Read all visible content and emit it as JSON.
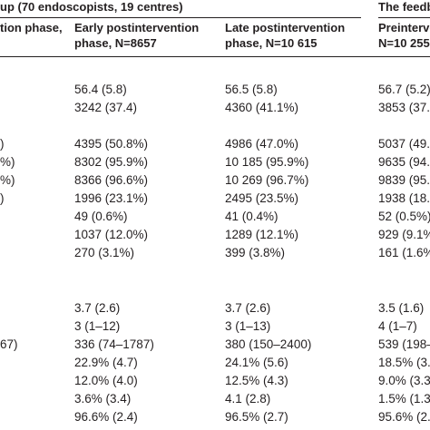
{
  "header": {
    "group1_title": "up (70 endoscopists, 19 centres)",
    "group2_title": "The feedb",
    "col0": [
      "tion phase,",
      ""
    ],
    "col1": [
      "Early postintervention",
      "phase, N=8657"
    ],
    "col2": [
      "Late postintervention",
      "phase, N=10 615"
    ],
    "col3": [
      "Preinterve",
      "N=10 255"
    ]
  },
  "rows": [
    {
      "c0": "",
      "c1": "56.4 (5.8)",
      "c2": "56.5 (5.8)",
      "c3": "56.7 (5.2)"
    },
    {
      "c0": "",
      "c1": "3242 (37.4)",
      "c2": "4360 (41.1%)",
      "c3": "3853 (37."
    },
    {
      "c0": ")",
      "c1": "4395 (50.8%)",
      "c2": "4986 (47.0%)",
      "c3": "5037 (49.1"
    },
    {
      "c0": "%)",
      "c1": "8302 (95.9%)",
      "c2": "10 185 (95.9%)",
      "c3": "9635 (94.0"
    },
    {
      "c0": "%)",
      "c1": "8366 (96.6%)",
      "c2": "10 269 (96.7%)",
      "c3": "9839 (95.9"
    },
    {
      "c0": ")",
      "c1": "1996 (23.1%)",
      "c2": "2495 (23.5%)",
      "c3": "1938 (18.9"
    },
    {
      "c0": "",
      "c1": "49 (0.6%)",
      "c2": "41 (0.4%)",
      "c3": "52 (0.5%)"
    },
    {
      "c0": "",
      "c1": "1037 (12.0%)",
      "c2": "1289 (12.1%)",
      "c3": "929 (9.1%"
    },
    {
      "c0": "",
      "c1": "270 (3.1%)",
      "c2": "399 (3.8%)",
      "c3": "161 (1.6%"
    },
    {
      "c0": "",
      "c1": "3.7 (2.6)",
      "c2": "3.7 (2.6)",
      "c3": "3.5 (1.6)"
    },
    {
      "c0": "",
      "c1": "3 (1–12)",
      "c2": "3 (1–13)",
      "c3": "4 (1–7)"
    },
    {
      "c0": "67)",
      "c1": "336 (74–1787)",
      "c2": "380 (150–2400)",
      "c3": "539 (198–"
    },
    {
      "c0": "",
      "c1": "22.9% (4.7)",
      "c2": "24.1% (5.6)",
      "c3": "18.5% (3."
    },
    {
      "c0": "",
      "c1": "12.0% (4.0)",
      "c2": "12.5% (4.3)",
      "c3": "9.0% (3.3"
    },
    {
      "c0": "",
      "c1": "3.6% (3.4)",
      "c2": "4.1 (2.8)",
      "c3": "1.5% (1.3"
    },
    {
      "c0": "",
      "c1": "96.6% (2.4)",
      "c2": "96.5% (2.7)",
      "c3": "95.6% (2.4"
    }
  ]
}
